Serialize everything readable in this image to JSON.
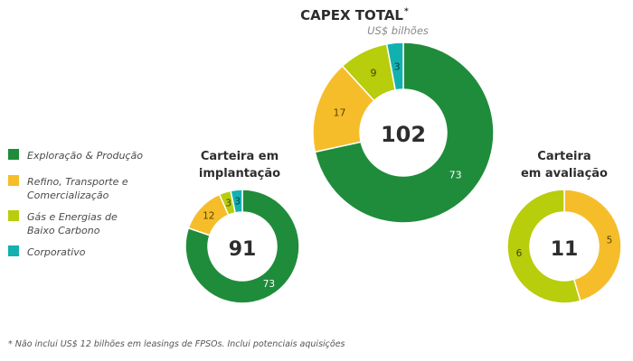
{
  "colors": {
    "exploracao": "#1f8c3b",
    "refino": "#f6bd2b",
    "gas": "#b8cd0b",
    "corporativo": "#13b0b0"
  },
  "legend": [
    {
      "key": "exploracao",
      "label_lines": [
        "Exploração & Produção"
      ]
    },
    {
      "key": "refino",
      "label_lines": [
        "Refino, Transporte e",
        "Comercialização"
      ]
    },
    {
      "key": "gas",
      "label_lines": [
        "Gás e Energias de",
        "Baixo Carbono"
      ]
    },
    {
      "key": "corporativo",
      "label_lines": [
        "Corporativo"
      ]
    }
  ],
  "footnote": "* Não inclui US$ 12 bilhões em leasings de FPSOs. Inclui potenciais aquisições",
  "chart_data": [
    {
      "type": "pie",
      "title": "CAPEX TOTAL",
      "title_mark": "*",
      "subtitle": "US$ bilhões",
      "center_label": "102",
      "slices": [
        {
          "key": "exploracao",
          "value": 73,
          "label": "73"
        },
        {
          "key": "refino",
          "value": 17,
          "label": "17"
        },
        {
          "key": "gas",
          "value": 9,
          "label": "9"
        },
        {
          "key": "corporativo",
          "value": 3,
          "label": "3"
        }
      ]
    },
    {
      "type": "pie",
      "title_lines": [
        "Carteira em",
        "implantação"
      ],
      "center_label": "91",
      "slices": [
        {
          "key": "exploracao",
          "value": 73,
          "label": "73"
        },
        {
          "key": "refino",
          "value": 12,
          "label": "12"
        },
        {
          "key": "gas",
          "value": 3,
          "label": "3"
        },
        {
          "key": "corporativo",
          "value": 3,
          "label": "3"
        }
      ]
    },
    {
      "type": "pie",
      "title_lines": [
        "Carteira",
        "em avaliação"
      ],
      "center_label": "11",
      "slices": [
        {
          "key": "refino",
          "value": 5,
          "label": "5"
        },
        {
          "key": "gas",
          "value": 6,
          "label": "6"
        }
      ]
    }
  ]
}
